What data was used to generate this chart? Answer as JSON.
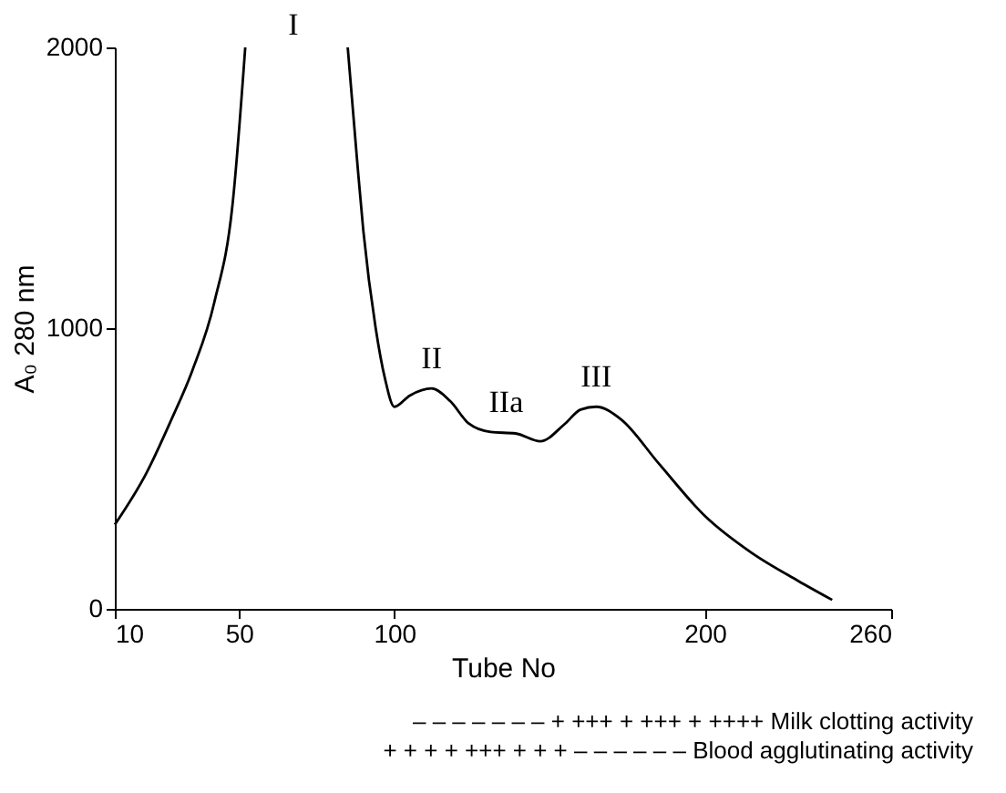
{
  "chart_data": {
    "type": "line",
    "xlabel": "Tube No",
    "ylabel": "A₀ 280 nm",
    "x": [
      10,
      20,
      28,
      35,
      42,
      48,
      52,
      null,
      85,
      88,
      90,
      94,
      97,
      100,
      105,
      112,
      118,
      124,
      131,
      139,
      147,
      155,
      160,
      165,
      173,
      185,
      200,
      215,
      230,
      241
    ],
    "series": [
      {
        "color": "#000000",
        "values": [
          300,
          480,
          669,
          850,
          1090,
          1450,
          2000,
          null,
          2000,
          1600,
          1350,
          1000,
          820,
          720,
          760,
          785,
          740,
          660,
          630,
          625,
          597,
          660,
          710,
          720,
          675,
          520,
          331,
          200,
          100,
          32
        ]
      }
    ],
    "xlim": [
      10,
      260
    ],
    "ylim": [
      0,
      2000
    ],
    "xticks": [
      10,
      50,
      100,
      200,
      260
    ],
    "yticks": [
      0,
      1000,
      2000
    ],
    "grid": false,
    "marker": "none",
    "line_style": "solid",
    "annotations": [
      "I",
      {
        "text": "II",
        "x": 112,
        "y": 785
      },
      {
        "text": "IIa",
        "x": 136,
        "y": 630
      },
      {
        "text": "III",
        "x": 165,
        "y": 720
      },
      "– – –  –  –   – – + +++  + +++ + ++++ Milk clotting activity",
      "+ + +  + +++  + + +  –   –  –   –   – – Blood agglutinating activity"
    ]
  }
}
